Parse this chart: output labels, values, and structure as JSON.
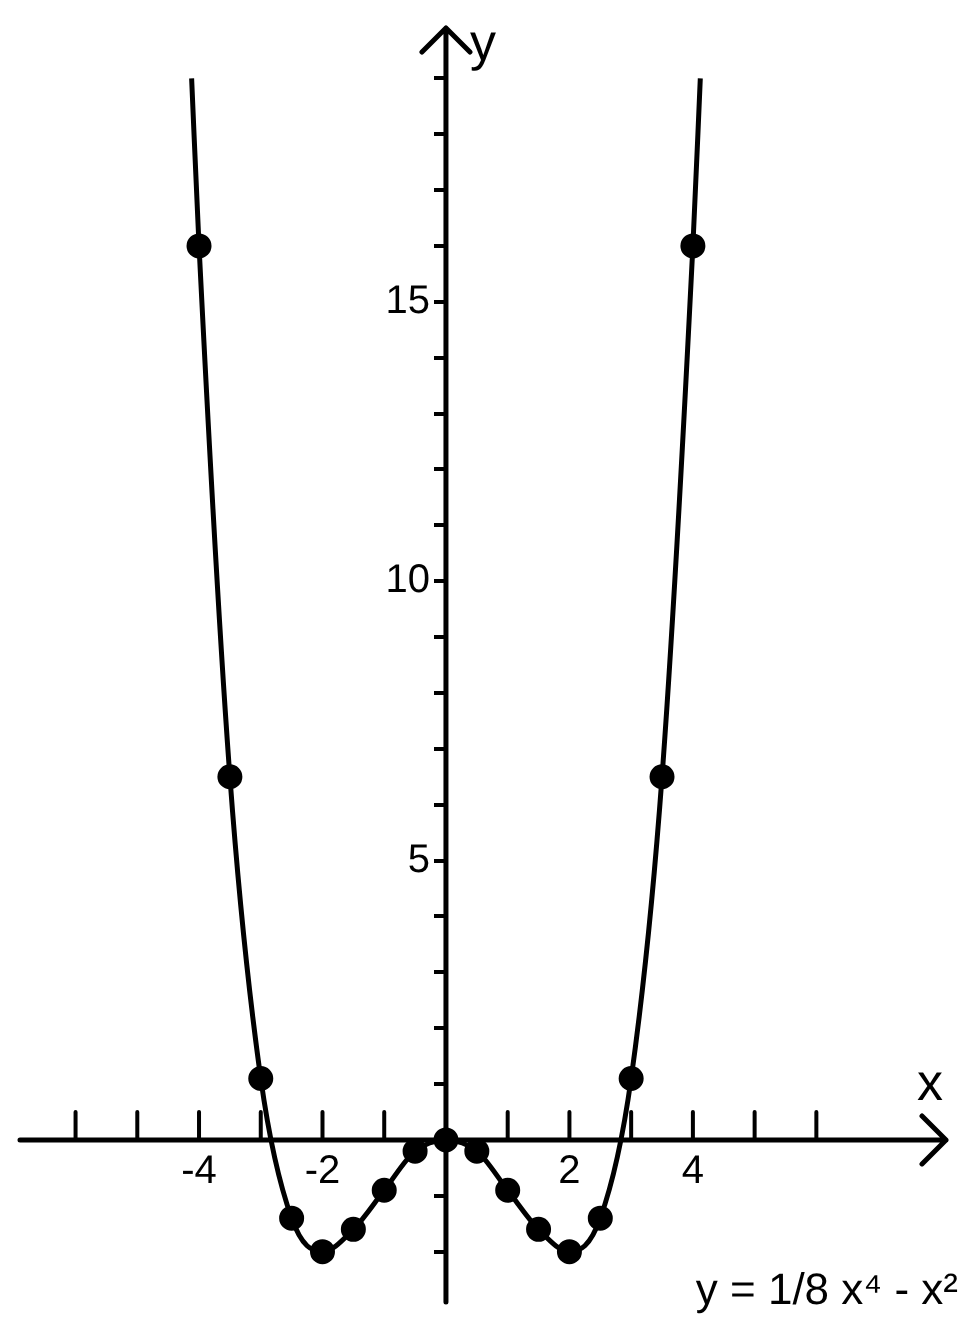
{
  "chart_data": {
    "type": "line",
    "xlabel": "x",
    "ylabel": "y",
    "xlim": [
      -6.9,
      8.1
    ],
    "ylim": [
      -2.9,
      19.9
    ],
    "xticks": [
      {
        "value": -6,
        "label": null
      },
      {
        "value": -5,
        "label": null
      },
      -4,
      {
        "value": -3,
        "label": null
      },
      -2,
      {
        "value": -1,
        "label": null
      },
      {
        "value": 1,
        "label": null
      },
      2,
      {
        "value": 3,
        "label": null
      },
      4,
      {
        "value": 5,
        "label": null
      },
      {
        "value": 6,
        "label": null
      }
    ],
    "yticks": [
      {
        "value": -2,
        "label": null
      },
      {
        "value": -1,
        "label": null
      },
      {
        "value": 1,
        "label": null
      },
      {
        "value": 2,
        "label": null
      },
      {
        "value": 3,
        "label": null
      },
      {
        "value": 4,
        "label": null
      },
      5,
      {
        "value": 6,
        "label": null
      },
      {
        "value": 7,
        "label": null
      },
      {
        "value": 8,
        "label": null
      },
      {
        "value": 9,
        "label": null
      },
      10,
      {
        "value": 11,
        "label": null
      },
      {
        "value": 12,
        "label": null
      },
      {
        "value": 13,
        "label": null
      },
      {
        "value": 14,
        "label": null
      },
      15,
      {
        "value": 16,
        "label": null
      },
      {
        "value": 17,
        "label": null
      },
      {
        "value": 18,
        "label": null
      },
      {
        "value": 19,
        "label": null
      }
    ],
    "grid": false,
    "legend": false,
    "series": [
      {
        "type": "line",
        "color": "#000000",
        "marker": "none",
        "x": [
          -4.12,
          -4,
          -3.5,
          -3,
          -2.5,
          -2,
          -1.5,
          -1,
          -0.5,
          0,
          0.5,
          1,
          1.5,
          2,
          2.5,
          3,
          3.5,
          4,
          4.12
        ],
        "values": [
          19.0,
          16,
          6.5,
          1.1,
          -1.4,
          -2,
          -1.6,
          -0.9,
          -0.2,
          0,
          -0.2,
          -0.9,
          -1.6,
          -2,
          -1.4,
          1.1,
          6.5,
          16,
          19.0
        ]
      },
      {
        "type": "scatter",
        "color": "#000000",
        "marker": "circle",
        "x": [
          -4,
          -3.5,
          -3,
          -2.5,
          -2,
          -1.5,
          -1,
          -0.5,
          0,
          0.5,
          1,
          1.5,
          2,
          2.5,
          3,
          3.5,
          4
        ],
        "values": [
          16,
          6.5,
          1.1,
          -1.4,
          -2,
          -1.6,
          -0.9,
          -0.2,
          0,
          -0.2,
          -0.9,
          -1.6,
          -2,
          -1.4,
          1.1,
          6.5,
          16
        ]
      }
    ],
    "annotations": [
      "y = 1/8 x⁴ - x²"
    ]
  }
}
